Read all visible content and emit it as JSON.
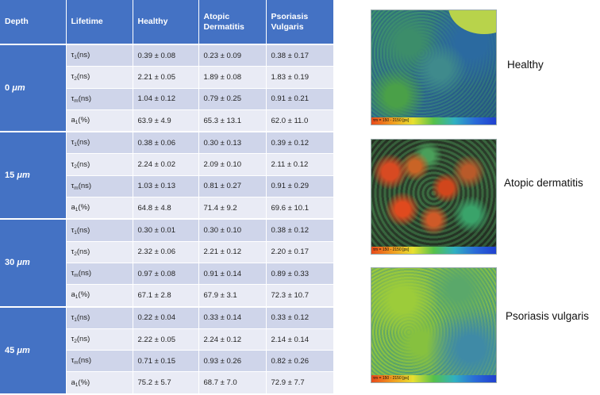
{
  "table": {
    "headers": {
      "depth": "Depth",
      "lifetime": "Lifetime",
      "healthy": "Healthy",
      "ad": "Atopic Dermatitis",
      "pv": "Psoriasis Vulgaris"
    },
    "groups": [
      {
        "depth": "0",
        "unit": "μm",
        "rows": [
          {
            "label": "τ",
            "sub": "1",
            "unit": "(ns)",
            "healthy": "0.39 ± 0.08",
            "ad": "0.23 ± 0.09",
            "pv": "0.38 ± 0.17"
          },
          {
            "label": "τ",
            "sub": "2",
            "unit": "(ns)",
            "healthy": "2.21 ± 0.05",
            "ad": "1.89 ± 0.08",
            "pv": "1.83 ± 0.19"
          },
          {
            "label": "τ",
            "sub": "m",
            "unit": "(ns)",
            "healthy": "1.04 ± 0.12",
            "ad": "0.79 ± 0.25",
            "pv": "0.91 ± 0.21"
          },
          {
            "label": "a",
            "sub": "1",
            "unit": "(%)",
            "healthy": "63.9 ± 4.9",
            "ad": "65.3 ± 13.1",
            "pv": "62.0 ± 11.0"
          }
        ]
      },
      {
        "depth": "15",
        "unit": "μm",
        "rows": [
          {
            "label": "τ",
            "sub": "1",
            "unit": "(ns)",
            "healthy": "0.38 ± 0.06",
            "ad": "0.30 ± 0.13",
            "pv": "0.39 ± 0.12"
          },
          {
            "label": "τ",
            "sub": "2",
            "unit": "(ns)",
            "healthy": "2.24 ± 0.02",
            "ad": "2.09 ± 0.10",
            "pv": "2.11 ± 0.12"
          },
          {
            "label": "τ",
            "sub": "m",
            "unit": "(ns)",
            "healthy": "1.03 ± 0.13",
            "ad": "0.81 ± 0.27",
            "pv": "0.91 ± 0.29"
          },
          {
            "label": "a",
            "sub": "1",
            "unit": "(%)",
            "healthy": "64.8 ± 4.8",
            "ad": "71.4 ± 9.2",
            "pv": "69.6 ± 10.1"
          }
        ]
      },
      {
        "depth": "30",
        "unit": "μm",
        "rows": [
          {
            "label": "τ",
            "sub": "1",
            "unit": "(ns)",
            "healthy": "0.30 ± 0.01",
            "ad": "0.30 ± 0.10",
            "pv": "0.38 ± 0.12"
          },
          {
            "label": "τ",
            "sub": "2",
            "unit": "(ns)",
            "healthy": "2.32 ± 0.06",
            "ad": "2.21 ± 0.12",
            "pv": "2.20 ± 0.17"
          },
          {
            "label": "τ",
            "sub": "m",
            "unit": "(ns)",
            "healthy": "0.97 ± 0.08",
            "ad": "0.91 ± 0.14",
            "pv": "0.89 ± 0.33"
          },
          {
            "label": "a",
            "sub": "1",
            "unit": "(%)",
            "healthy": "67.1 ± 2.8",
            "ad": "67.9 ± 3.1",
            "pv": "72.3 ± 10.7"
          }
        ]
      },
      {
        "depth": "45",
        "unit": "μm",
        "rows": [
          {
            "label": "τ",
            "sub": "1",
            "unit": "(ns)",
            "healthy": "0.22 ± 0.04",
            "ad": "0.33 ± 0.14",
            "pv": "0.33 ± 0.12"
          },
          {
            "label": "τ",
            "sub": "2",
            "unit": "(ns)",
            "healthy": "2.22 ± 0.05",
            "ad": "2.24 ± 0.12",
            "pv": "2.14 ± 0.14"
          },
          {
            "label": "τ",
            "sub": "m",
            "unit": "(ns)",
            "healthy": "0.71 ± 0.15",
            "ad": "0.93 ± 0.26",
            "pv": "0.82 ± 0.26"
          },
          {
            "label": "a",
            "sub": "1",
            "unit": "(%)",
            "healthy": "75.2 ± 5.7",
            "ad": "68.7 ± 7.0",
            "pv": "72.9 ± 7.7"
          }
        ]
      }
    ]
  },
  "images": [
    {
      "label": "Healthy",
      "scale": "τm = 150 - 2150 [ps]"
    },
    {
      "label": "Atopic dermatitis",
      "scale": "τm = 150 - 2150 [ps]"
    },
    {
      "label": "Psoriasis vulgaris",
      "scale": "τm = 150 - 2150 [ps]"
    }
  ],
  "colors": {
    "header_bg": "#4472c4",
    "row_odd": "#cfd5ea",
    "row_even": "#e9ebf5",
    "colorbar": [
      "#e84a1c",
      "#f09a20",
      "#e8e030",
      "#56c04a",
      "#30b0c0",
      "#2a6ad8",
      "#2040d0"
    ]
  }
}
